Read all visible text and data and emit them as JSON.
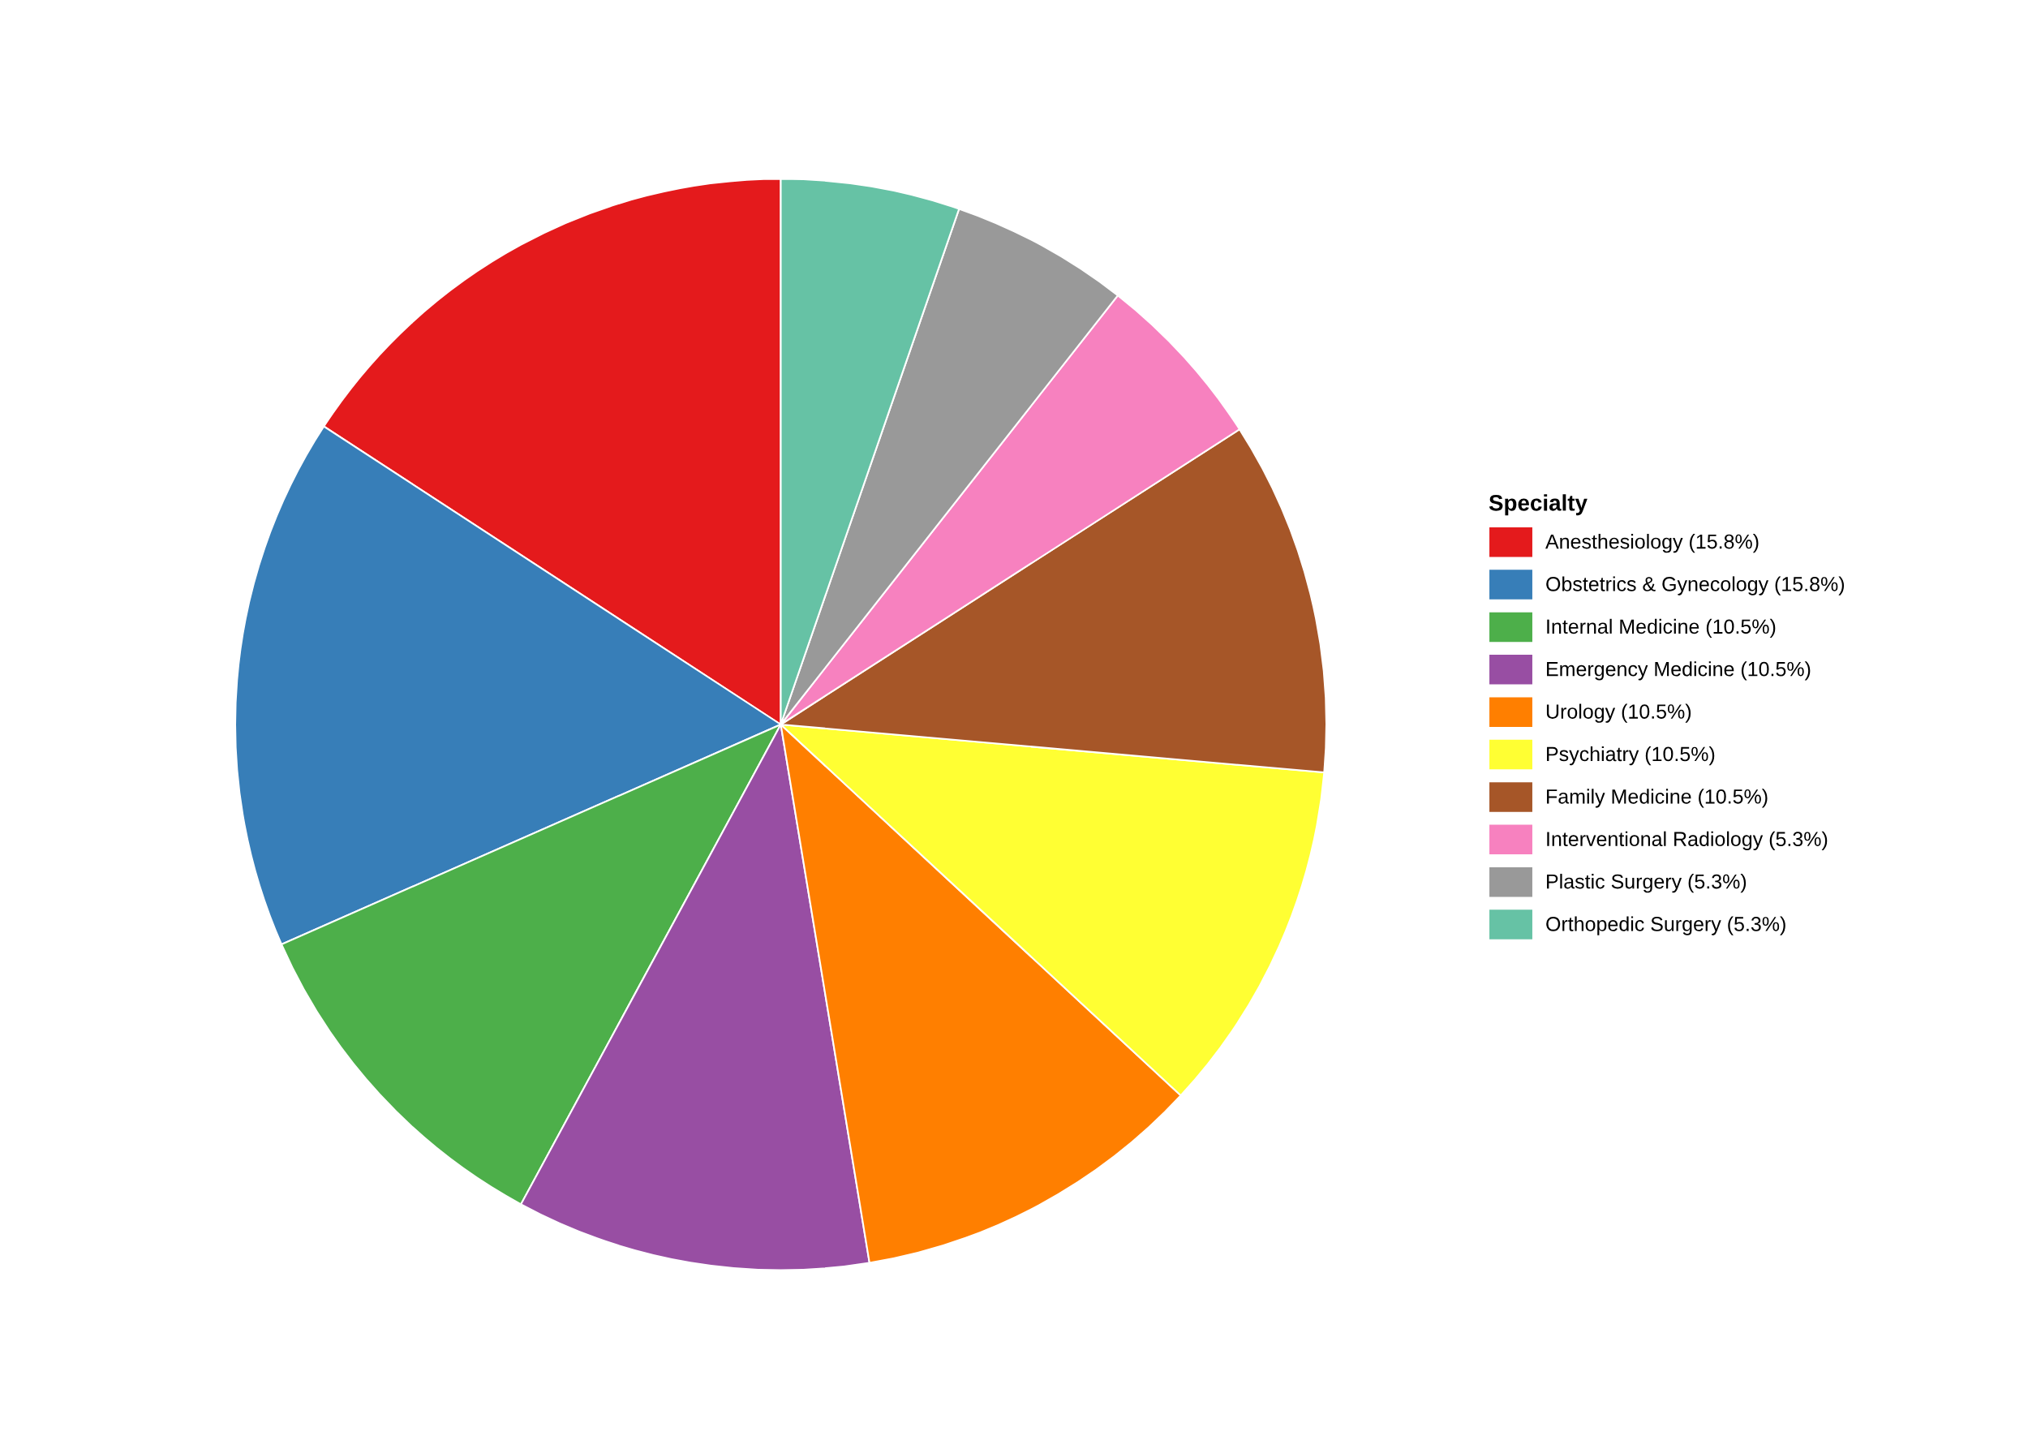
{
  "chart_data": {
    "type": "pie",
    "legend_title": "Specialty",
    "categories": [
      "Anesthesiology (15.8%)",
      "Obstetrics & Gynecology (15.8%)",
      "Internal Medicine (10.5%)",
      "Emergency Medicine (10.5%)",
      "Urology (10.5%)",
      "Psychiatry (10.5%)",
      "Family Medicine (10.5%)",
      "Interventional Radiology (5.3%)",
      "Plastic Surgery (5.3%)",
      "Orthopedic Surgery (5.3%)"
    ],
    "values": [
      15.8,
      15.8,
      10.5,
      10.5,
      10.5,
      10.5,
      10.5,
      5.3,
      5.3,
      5.3
    ],
    "colors": [
      "#e41a1c",
      "#377eb8",
      "#4daf4a",
      "#984ea3",
      "#ff7f00",
      "#ffff33",
      "#a65628",
      "#f781bf",
      "#999999",
      "#66c2a5"
    ],
    "legend": "right"
  }
}
